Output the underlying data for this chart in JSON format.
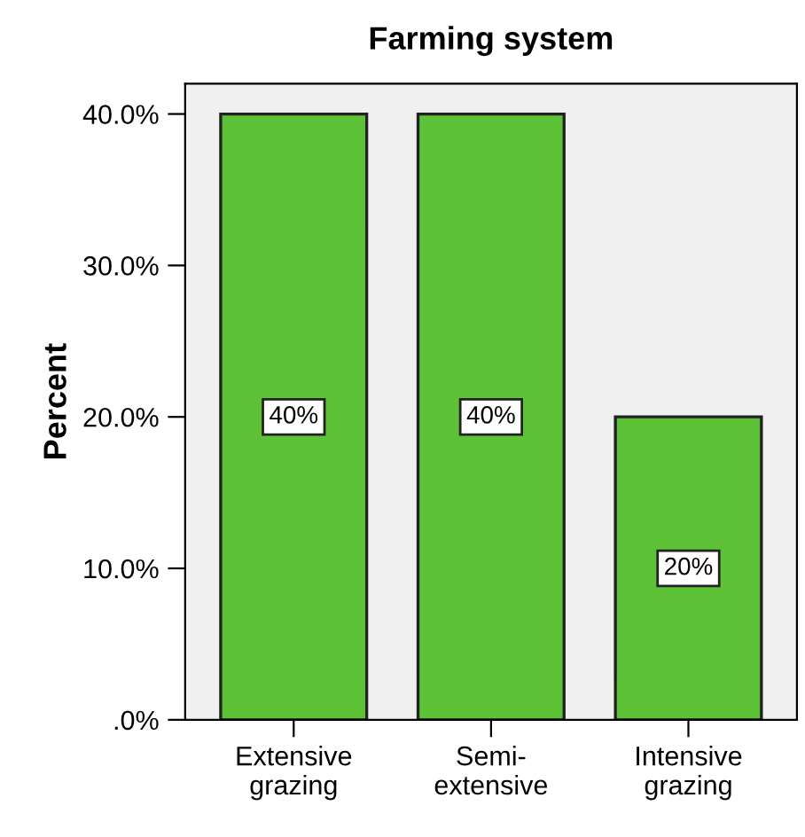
{
  "chart_data": {
    "type": "bar",
    "title": "Farming system",
    "ylabel": "Percent",
    "categories": [
      "Extensive\ngrazing",
      "Semi-\nextensive",
      "Intensive\ngrazing"
    ],
    "values": [
      40,
      40,
      20
    ],
    "value_labels": [
      "40%",
      "40%",
      "20%"
    ],
    "color": "#5ec236",
    "ylim": [
      0,
      42
    ],
    "yticks": [
      {
        "value": 0,
        "label": ".0%"
      },
      {
        "value": 10,
        "label": "10.0%"
      },
      {
        "value": 20,
        "label": "20.0%"
      },
      {
        "value": 30,
        "label": "30.0%"
      },
      {
        "value": 40,
        "label": "40.0%"
      }
    ],
    "grid": false,
    "legend": false
  }
}
